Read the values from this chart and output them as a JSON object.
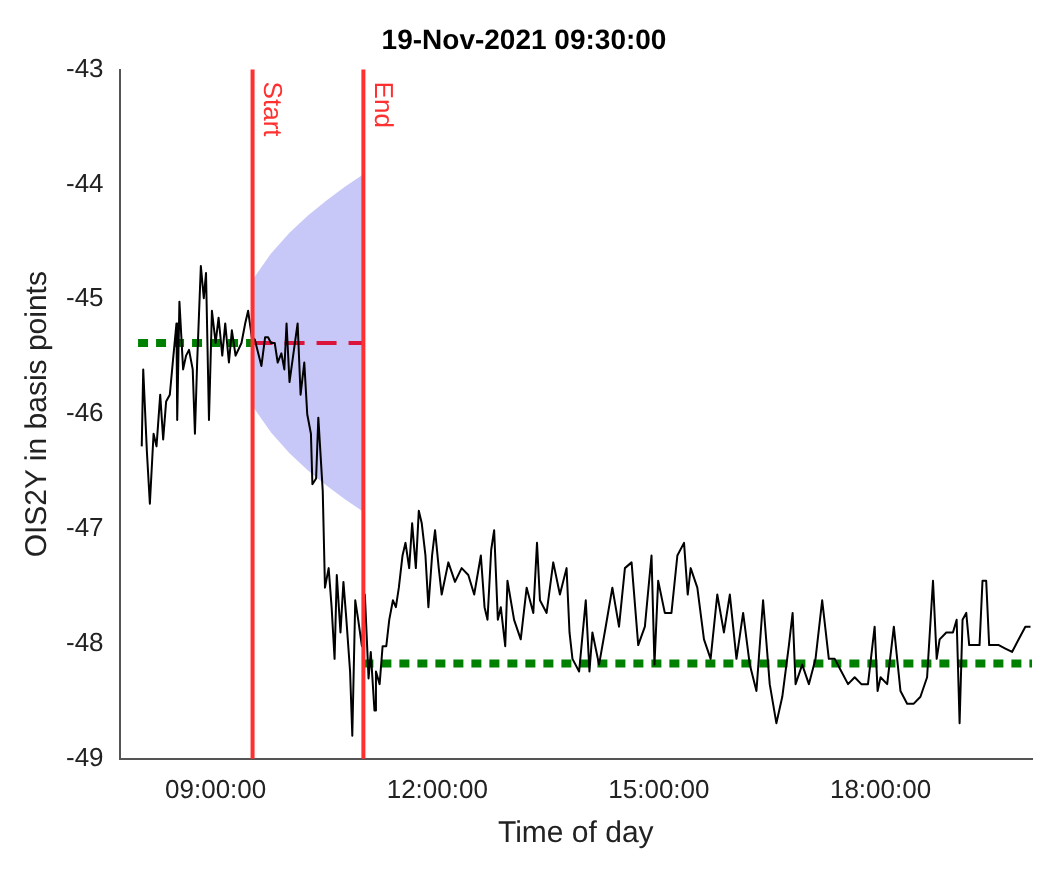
{
  "chart_data": {
    "type": "line",
    "title": "19-Nov-2021 09:30:00",
    "xlabel": "Time of day",
    "ylabel": "OIS2Y in basis points",
    "xlim": [
      7.7,
      20.05
    ],
    "xticks": [
      {
        "value": 9,
        "label": "09:00:00"
      },
      {
        "value": 12,
        "label": "12:00:00"
      },
      {
        "value": 15,
        "label": "15:00:00"
      },
      {
        "value": 18,
        "label": "18:00:00"
      }
    ],
    "ylim": [
      -49,
      -43
    ],
    "yticks": [
      -49,
      -48,
      -47,
      -46,
      -45,
      -44,
      -43
    ],
    "grid": false,
    "legend": false,
    "marker": "none",
    "series": [
      {
        "color": "#000000",
        "line_style": "solid",
        "x": [
          8.0,
          8.02,
          8.07,
          8.11,
          8.16,
          8.2,
          8.25,
          8.29,
          8.33,
          8.38,
          8.42,
          8.47,
          8.48,
          8.51,
          8.56,
          8.6,
          8.64,
          8.69,
          8.72,
          8.75,
          8.8,
          8.84,
          8.87,
          8.91,
          8.95,
          9.0,
          9.04,
          9.09,
          9.13,
          9.18,
          9.22,
          9.27,
          9.35,
          9.4,
          9.44,
          9.49,
          9.53,
          9.62,
          9.67,
          9.71,
          9.75,
          9.8,
          9.84,
          9.89,
          9.93,
          9.96,
          10.0,
          10.06,
          10.11,
          10.15,
          10.2,
          10.24,
          10.29,
          10.31,
          10.36,
          10.39,
          10.45,
          10.48,
          10.53,
          10.57,
          10.61,
          10.64,
          10.69,
          10.73,
          10.77,
          10.82,
          10.85,
          10.89,
          10.93,
          10.98,
          11.02,
          11.07,
          11.1,
          11.15,
          11.17,
          11.22,
          11.26,
          11.31,
          11.35,
          11.4,
          11.44,
          11.48,
          11.53,
          11.57,
          11.62,
          11.66,
          11.71,
          11.75,
          11.79,
          11.84,
          11.88,
          11.93,
          11.97,
          12.02,
          12.06,
          12.15,
          12.24,
          12.33,
          12.42,
          12.5,
          12.59,
          12.64,
          12.68,
          12.73,
          12.77,
          12.82,
          12.86,
          12.92,
          12.95,
          13.04,
          13.13,
          13.21,
          13.3,
          13.35,
          13.39,
          13.48,
          13.57,
          13.66,
          13.75,
          13.79,
          13.83,
          13.92,
          14.01,
          14.06,
          14.1,
          14.19,
          14.28,
          14.37,
          14.46,
          14.54,
          14.63,
          14.72,
          14.81,
          14.9,
          14.94,
          14.99,
          15.08,
          15.17,
          15.25,
          15.34,
          15.39,
          15.43,
          15.52,
          15.61,
          15.7,
          15.79,
          15.88,
          15.96,
          16.05,
          16.14,
          16.23,
          16.32,
          16.41,
          16.5,
          16.59,
          16.67,
          16.76,
          16.81,
          16.85,
          16.94,
          17.03,
          17.12,
          17.21,
          17.3,
          17.38,
          17.47,
          17.56,
          17.65,
          17.74,
          17.83,
          17.92,
          17.96,
          18.0,
          18.09,
          18.18,
          18.27,
          18.36,
          18.45,
          18.54,
          18.63,
          18.71,
          18.76,
          18.8,
          18.89,
          18.98,
          19.03,
          19.07,
          19.11,
          19.16,
          19.2,
          19.34,
          19.38,
          19.43,
          19.47,
          19.6,
          19.69,
          19.78,
          19.87,
          19.96,
          20.03
        ],
        "values": [
          -46.28,
          -45.61,
          -46.33,
          -46.78,
          -46.17,
          -46.28,
          -45.83,
          -46.22,
          -45.89,
          -45.83,
          -45.55,
          -45.21,
          -46.05,
          -45.02,
          -45.61,
          -45.49,
          -45.44,
          -45.61,
          -46.17,
          -45.55,
          -44.71,
          -44.99,
          -44.77,
          -46.05,
          -45.1,
          -45.38,
          -45.16,
          -45.49,
          -45.21,
          -45.55,
          -45.27,
          -45.49,
          -45.38,
          -45.21,
          -45.1,
          -45.33,
          -45.35,
          -45.58,
          -45.33,
          -45.33,
          -45.38,
          -45.38,
          -45.55,
          -45.47,
          -45.61,
          -45.21,
          -45.72,
          -45.44,
          -45.21,
          -45.83,
          -45.55,
          -46.0,
          -46.17,
          -46.61,
          -46.56,
          -46.03,
          -46.67,
          -47.51,
          -47.34,
          -47.68,
          -48.13,
          -47.4,
          -47.9,
          -47.46,
          -47.79,
          -48.24,
          -48.8,
          -47.62,
          -47.79,
          -48.02,
          -47.57,
          -48.3,
          -48.07,
          -48.58,
          -48.24,
          -48.35,
          -48.02,
          -48.02,
          -47.79,
          -47.62,
          -47.68,
          -47.51,
          -47.23,
          -47.12,
          -47.34,
          -46.95,
          -47.34,
          -46.84,
          -46.95,
          -47.23,
          -47.68,
          -47.23,
          -47.01,
          -47.34,
          -47.57,
          -47.29,
          -47.46,
          -47.34,
          -47.4,
          -47.57,
          -47.23,
          -47.68,
          -47.79,
          -47.18,
          -47.01,
          -47.79,
          -47.68,
          -48.02,
          -47.45,
          -47.79,
          -47.96,
          -47.51,
          -47.73,
          -47.12,
          -47.62,
          -47.73,
          -47.29,
          -47.57,
          -47.34,
          -47.9,
          -48.13,
          -48.24,
          -47.62,
          -48.24,
          -47.9,
          -48.18,
          -47.85,
          -47.51,
          -47.85,
          -47.34,
          -47.29,
          -48.01,
          -47.85,
          -47.23,
          -48.18,
          -47.45,
          -47.73,
          -47.73,
          -47.23,
          -47.12,
          -47.57,
          -47.34,
          -47.51,
          -47.96,
          -48.13,
          -47.57,
          -47.9,
          -47.57,
          -48.13,
          -47.73,
          -48.18,
          -48.41,
          -47.62,
          -48.35,
          -48.69,
          -48.46,
          -48.01,
          -47.73,
          -48.35,
          -48.18,
          -48.35,
          -48.13,
          -47.62,
          -48.13,
          -48.13,
          -48.24,
          -48.35,
          -48.29,
          -48.35,
          -48.35,
          -47.85,
          -48.41,
          -48.29,
          -48.35,
          -47.85,
          -48.41,
          -48.52,
          -48.52,
          -48.46,
          -48.29,
          -47.45,
          -48.13,
          -47.96,
          -47.9,
          -47.9,
          -47.79,
          -48.69,
          -47.79,
          -47.73,
          -48.01,
          -48.01,
          -47.45,
          -47.45,
          -48.01,
          -48.01,
          -48.04,
          -48.07,
          -47.96,
          -47.85,
          -47.85
        ]
      },
      {
        "color": "#008000",
        "line_style": "dotted",
        "x": [
          7.95,
          9.5
        ],
        "values": [
          -45.38,
          -45.38
        ]
      },
      {
        "color": "#008000",
        "line_style": "dotted",
        "x": [
          11.0,
          20.05
        ],
        "values": [
          -48.17,
          -48.17
        ]
      },
      {
        "color": "#dc143c",
        "line_style": "dashed",
        "x": [
          9.5,
          9.75,
          10.0,
          10.25,
          10.5,
          10.75,
          11.0
        ],
        "values": [
          -45.38,
          -45.38,
          -45.38,
          -45.38,
          -45.38,
          -45.38,
          -45.38
        ],
        "upper": [
          -44.83,
          -44.6,
          -44.42,
          -44.27,
          -44.14,
          -44.02,
          -43.91
        ],
        "lower": [
          -45.93,
          -46.16,
          -46.34,
          -46.49,
          -46.62,
          -46.74,
          -46.85
        ]
      }
    ],
    "ref_lines": [
      {
        "axis": "x",
        "value": 9.5,
        "label": "Start",
        "color": "#ff3030"
      },
      {
        "axis": "x",
        "value": 11.0,
        "label": "End",
        "color": "#ff3030"
      }
    ]
  }
}
